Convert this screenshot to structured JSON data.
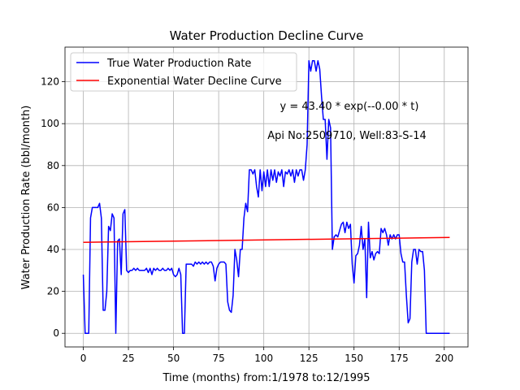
{
  "chart_data": {
    "type": "line",
    "title": "Water Production Decline Curve",
    "xlabel": "Time (months) from:1/1978 to:12/1995",
    "ylabel": "Water Production Rate (bbl/month)",
    "annotations": [
      "y = 43.40 * exp(--0.00 * t)",
      "Api No:2509710, Well:83-S-14"
    ],
    "xlim": [
      -10.15,
      213.15
    ],
    "ylim": [
      -6.5,
      136.5
    ],
    "xticks": [
      0,
      25,
      50,
      75,
      100,
      125,
      150,
      175,
      200
    ],
    "yticks": [
      0,
      20,
      40,
      60,
      80,
      100,
      120
    ],
    "grid": true,
    "legend": "upper left",
    "series": [
      {
        "name": "True Water Production Rate",
        "color": "#0000ff",
        "x": [
          0,
          1,
          2,
          3,
          4,
          5,
          6,
          7,
          8,
          9,
          10,
          11,
          12,
          13,
          14,
          15,
          16,
          17,
          18,
          19,
          20,
          21,
          22,
          23,
          24,
          25,
          26,
          27,
          28,
          29,
          30,
          31,
          32,
          33,
          34,
          35,
          36,
          37,
          38,
          39,
          40,
          41,
          42,
          43,
          44,
          45,
          46,
          47,
          48,
          49,
          50,
          51,
          52,
          53,
          54,
          55,
          56,
          57,
          58,
          59,
          60,
          61,
          62,
          63,
          64,
          65,
          66,
          67,
          68,
          69,
          70,
          71,
          72,
          73,
          74,
          75,
          76,
          77,
          78,
          79,
          80,
          81,
          82,
          83,
          84,
          85,
          86,
          87,
          88,
          89,
          90,
          91,
          92,
          93,
          94,
          95,
          96,
          97,
          98,
          99,
          100,
          101,
          102,
          103,
          104,
          105,
          106,
          107,
          108,
          109,
          110,
          111,
          112,
          113,
          114,
          115,
          116,
          117,
          118,
          119,
          120,
          121,
          122,
          123,
          124,
          125,
          126,
          127,
          128,
          129,
          130,
          131,
          132,
          133,
          134,
          135,
          136,
          137,
          138,
          139,
          140,
          141,
          142,
          143,
          144,
          145,
          146,
          147,
          148,
          149,
          150,
          151,
          152,
          153,
          154,
          155,
          156,
          157,
          158,
          159,
          160,
          161,
          162,
          163,
          164,
          165,
          166,
          167,
          168,
          169,
          170,
          171,
          172,
          173,
          174,
          175,
          176,
          177,
          178,
          179,
          180,
          181,
          182,
          183,
          184,
          185,
          186,
          187,
          188,
          189,
          190,
          191,
          192,
          193,
          194,
          195,
          196,
          197,
          198,
          199,
          200,
          201,
          202,
          203
        ],
        "values": [
          28,
          0,
          0,
          0,
          55,
          60,
          60,
          60,
          60,
          62,
          55,
          11,
          11,
          20,
          51,
          49,
          57,
          55,
          0,
          44,
          45,
          28,
          57,
          59,
          30,
          29,
          30,
          30,
          31,
          30,
          31,
          30,
          30,
          30,
          30,
          31,
          29,
          31,
          28,
          31,
          30,
          31,
          30,
          30,
          31,
          30,
          30,
          31,
          30,
          31,
          28,
          27,
          28,
          31,
          28,
          0,
          0,
          33,
          33,
          33,
          33,
          32,
          34,
          33,
          34,
          33,
          34,
          33,
          34,
          33,
          34,
          34,
          32,
          25,
          31,
          33,
          34,
          34,
          34,
          33,
          15,
          11,
          10,
          18,
          40,
          35,
          27,
          40,
          40,
          55,
          62,
          58,
          78,
          78,
          76,
          78,
          70,
          65,
          78,
          68,
          77,
          70,
          78,
          70,
          78,
          73,
          78,
          72,
          77,
          75,
          78,
          70,
          77,
          76,
          78,
          75,
          78,
          72,
          78,
          75,
          78,
          78,
          73,
          78,
          90,
          130,
          125,
          130,
          130,
          125,
          130,
          126,
          113,
          102,
          102,
          83,
          102,
          98,
          40,
          46,
          47,
          46,
          49,
          52,
          53,
          48,
          53,
          50,
          52,
          33,
          24,
          37,
          38,
          42,
          51,
          40,
          45,
          17,
          53,
          36,
          39,
          35,
          38,
          39,
          38,
          50,
          48,
          50,
          47,
          42,
          47,
          45,
          47,
          45,
          47,
          47,
          38,
          34,
          34,
          18,
          5,
          7,
          34,
          40,
          40,
          33,
          40,
          39,
          39,
          30,
          0,
          0,
          0,
          0,
          0,
          0,
          0,
          0,
          0,
          0,
          0,
          0,
          0,
          0
        ]
      },
      {
        "name": "Exponential Water Decline Curve",
        "color": "#ff0000",
        "x": [
          0,
          203
        ],
        "values": [
          43.4,
          45.7
        ]
      }
    ]
  }
}
